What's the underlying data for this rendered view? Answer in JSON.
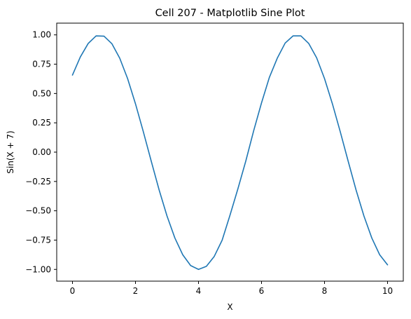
{
  "chart_data": {
    "type": "line",
    "title": "Cell 207 - Matplotlib Sine Plot",
    "xlabel": "X",
    "ylabel": "Sin(X + 7)",
    "xlim": [
      -0.5,
      10.5
    ],
    "ylim": [
      -1.1,
      1.1
    ],
    "x_ticks": [
      0,
      2,
      4,
      6,
      8,
      10
    ],
    "x_tick_labels": [
      "0",
      "2",
      "4",
      "6",
      "8",
      "10"
    ],
    "y_ticks": [
      -1.0,
      -0.75,
      -0.5,
      -0.25,
      0.0,
      0.25,
      0.5,
      0.75,
      1.0
    ],
    "y_tick_labels": [
      "−1.00",
      "−0.75",
      "−0.50",
      "−0.25",
      "0.00",
      "0.25",
      "0.50",
      "0.75",
      "1.00"
    ],
    "grid": false,
    "legend": "none",
    "series": [
      {
        "color": "#1f77b4",
        "x": [
          0,
          0.25,
          0.5,
          0.75,
          1,
          1.25,
          1.5,
          1.75,
          2,
          2.25,
          2.5,
          2.75,
          3,
          3.25,
          3.5,
          3.75,
          4,
          4.25,
          4.5,
          4.75,
          5,
          5.25,
          5.5,
          5.75,
          6,
          6.25,
          6.5,
          6.75,
          7,
          7.25,
          7.5,
          7.75,
          8,
          8.25,
          8.5,
          8.75,
          9,
          9.25,
          9.5,
          9.75,
          10
        ],
        "y": [
          0.657,
          0.812,
          0.927,
          0.991,
          0.989,
          0.925,
          0.801,
          0.627,
          0.412,
          0.173,
          -0.077,
          -0.322,
          -0.544,
          -0.732,
          -0.875,
          -0.967,
          -1.0,
          -0.974,
          -0.889,
          -0.751,
          -0.537,
          -0.313,
          -0.077,
          0.181,
          0.42,
          0.638,
          0.801,
          0.93,
          0.991,
          0.991,
          0.926,
          0.804,
          0.627,
          0.412,
          0.173,
          -0.077,
          -0.322,
          -0.544,
          -0.732,
          -0.875,
          -0.961
        ]
      }
    ]
  }
}
